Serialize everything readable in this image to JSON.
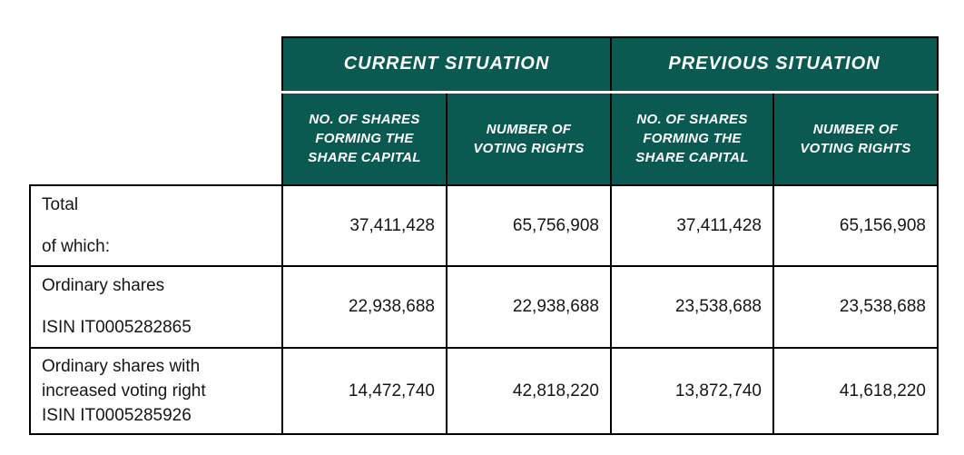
{
  "colors": {
    "header_bg": "#0b5a52",
    "header_text": "#ffffff",
    "body_text": "#161616",
    "border": "#000000",
    "page_bg": "#ffffff",
    "header_divider": "#ffffff"
  },
  "table": {
    "groups": [
      {
        "label": "CURRENT SITUATION"
      },
      {
        "label": "PREVIOUS SITUATION"
      }
    ],
    "columns": [
      "NO. OF SHARES\nFORMING THE\nSHARE CAPITAL",
      "NUMBER OF\nVOTING RIGHTS",
      "NO. OF SHARES\nFORMING THE\nSHARE CAPITAL",
      "NUMBER OF\nVOTING RIGHTS"
    ],
    "rows": [
      {
        "label_lines": [
          "Total",
          "of which:"
        ],
        "values": [
          "37,411,428",
          "65,756,908",
          "37,411,428",
          "65,156,908"
        ]
      },
      {
        "label_lines": [
          "Ordinary shares",
          "ISIN IT0005282865"
        ],
        "values": [
          "22,938,688",
          "22,938,688",
          "23,538,688",
          "23,538,688"
        ]
      },
      {
        "label_lines": [
          "Ordinary shares with",
          "increased voting right",
          "ISIN IT0005285926"
        ],
        "values": [
          "14,472,740",
          "42,818,220",
          "13,872,740",
          "41,618,220"
        ]
      }
    ]
  }
}
